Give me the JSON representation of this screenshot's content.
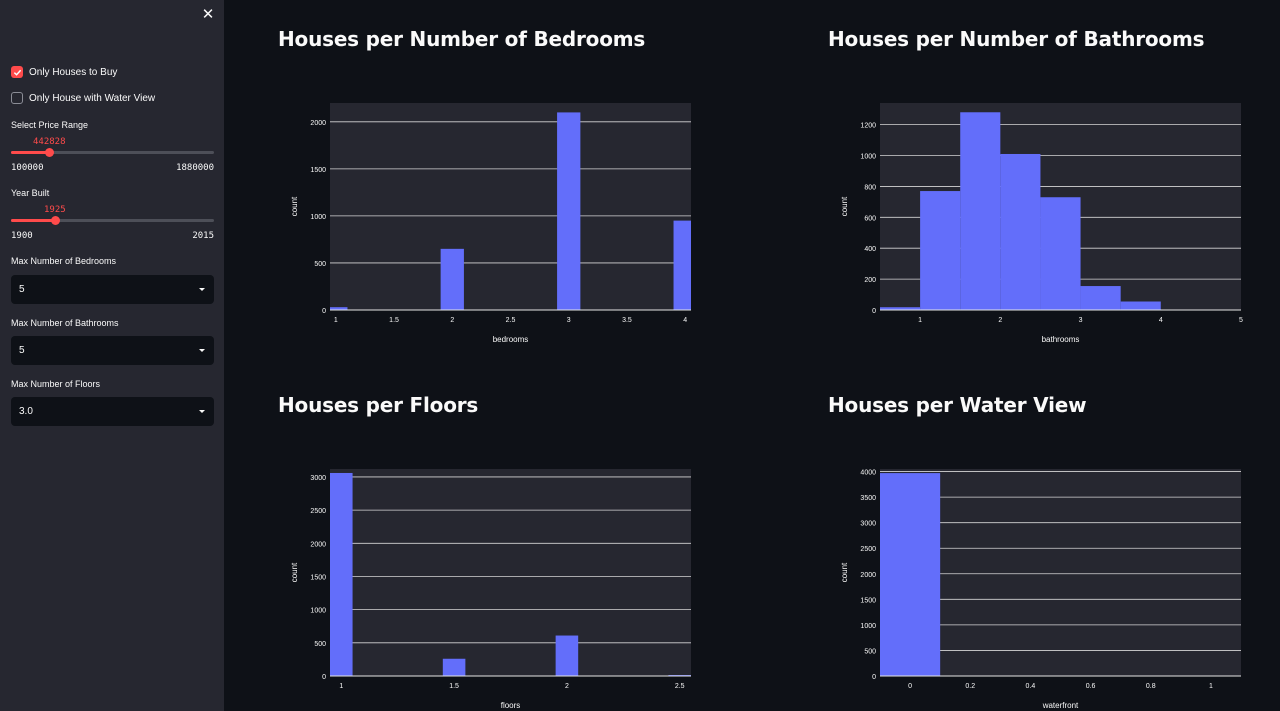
{
  "sidebar": {
    "close_icon": "close-icon",
    "only_houses_to_buy": {
      "label": "Only Houses to Buy",
      "checked": true
    },
    "only_water_view": {
      "label": "Only House with Water View",
      "checked": false
    },
    "price_range": {
      "label": "Select Price Range",
      "value": "442828",
      "min": "100000",
      "max": "1880000"
    },
    "year_built": {
      "label": "Year Built",
      "value": "1925",
      "min": "1900",
      "max": "2015"
    },
    "max_bedrooms": {
      "label": "Max Number of Bedrooms",
      "value": "5"
    },
    "max_bathrooms": {
      "label": "Max Number of Bathrooms",
      "value": "5"
    },
    "max_floors": {
      "label": "Max Number of Floors",
      "value": "3.0"
    }
  },
  "colors": {
    "accent": "#ff4b4b",
    "bar": "#636efa",
    "plot_bg": "#262730",
    "page_bg": "#0e1117",
    "sidebar_bg": "#262730"
  },
  "charts": {
    "bedrooms": {
      "title": "Houses per Number of Bedrooms"
    },
    "bathrooms": {
      "title": "Houses per Number of Bathrooms"
    },
    "floors": {
      "title": "Houses per Floors"
    },
    "water": {
      "title": "Houses per Water View"
    }
  },
  "chart_data": [
    {
      "id": "bedrooms",
      "type": "bar",
      "xlabel": "bedrooms",
      "ylabel": "count",
      "xlim": [
        0.95,
        4.05
      ],
      "ylim": [
        0,
        2200
      ],
      "bar_width": 0.2,
      "xticks": [
        "1",
        "1.5",
        "2",
        "2.5",
        "3",
        "3.5",
        "4"
      ],
      "yticks": [
        0,
        500,
        1000,
        1500,
        2000
      ],
      "x": [
        1,
        2,
        3,
        4
      ],
      "values": [
        30,
        650,
        2100,
        950
      ]
    },
    {
      "id": "bathrooms",
      "type": "bar",
      "xlabel": "bathrooms",
      "ylabel": "count",
      "xlim": [
        0.5,
        5
      ],
      "ylim": [
        0,
        1340
      ],
      "bar_width": 0.5,
      "xticks": [
        "1",
        "2",
        "3",
        "4",
        "5"
      ],
      "yticks": [
        0,
        200,
        400,
        600,
        800,
        1000,
        1200
      ],
      "x": [
        0.75,
        1.25,
        1.75,
        2.25,
        2.75,
        3.25,
        3.75
      ],
      "values": [
        18,
        770,
        1280,
        1010,
        730,
        155,
        55
      ]
    },
    {
      "id": "floors",
      "type": "bar",
      "xlabel": "floors",
      "ylabel": "count",
      "xlim": [
        0.95,
        2.55
      ],
      "ylim": [
        0,
        3120
      ],
      "bar_width": 0.1,
      "xticks": [
        "1",
        "1.5",
        "2",
        "2.5"
      ],
      "yticks": [
        0,
        500,
        1000,
        1500,
        2000,
        2500,
        3000
      ],
      "x": [
        1,
        1.5,
        2,
        2.5
      ],
      "values": [
        3060,
        260,
        610,
        15
      ]
    },
    {
      "id": "water",
      "type": "bar",
      "xlabel": "waterfront",
      "ylabel": "count",
      "xlim": [
        -0.1,
        1.1
      ],
      "ylim": [
        0,
        4050
      ],
      "bar_width": 0.2,
      "xticks": [
        "0",
        "0.2",
        "0.4",
        "0.6",
        "0.8",
        "1"
      ],
      "yticks": [
        0,
        500,
        1000,
        1500,
        2000,
        2500,
        3000,
        3500,
        4000
      ],
      "x": [
        0,
        1
      ],
      "values": [
        3970,
        8
      ]
    }
  ]
}
